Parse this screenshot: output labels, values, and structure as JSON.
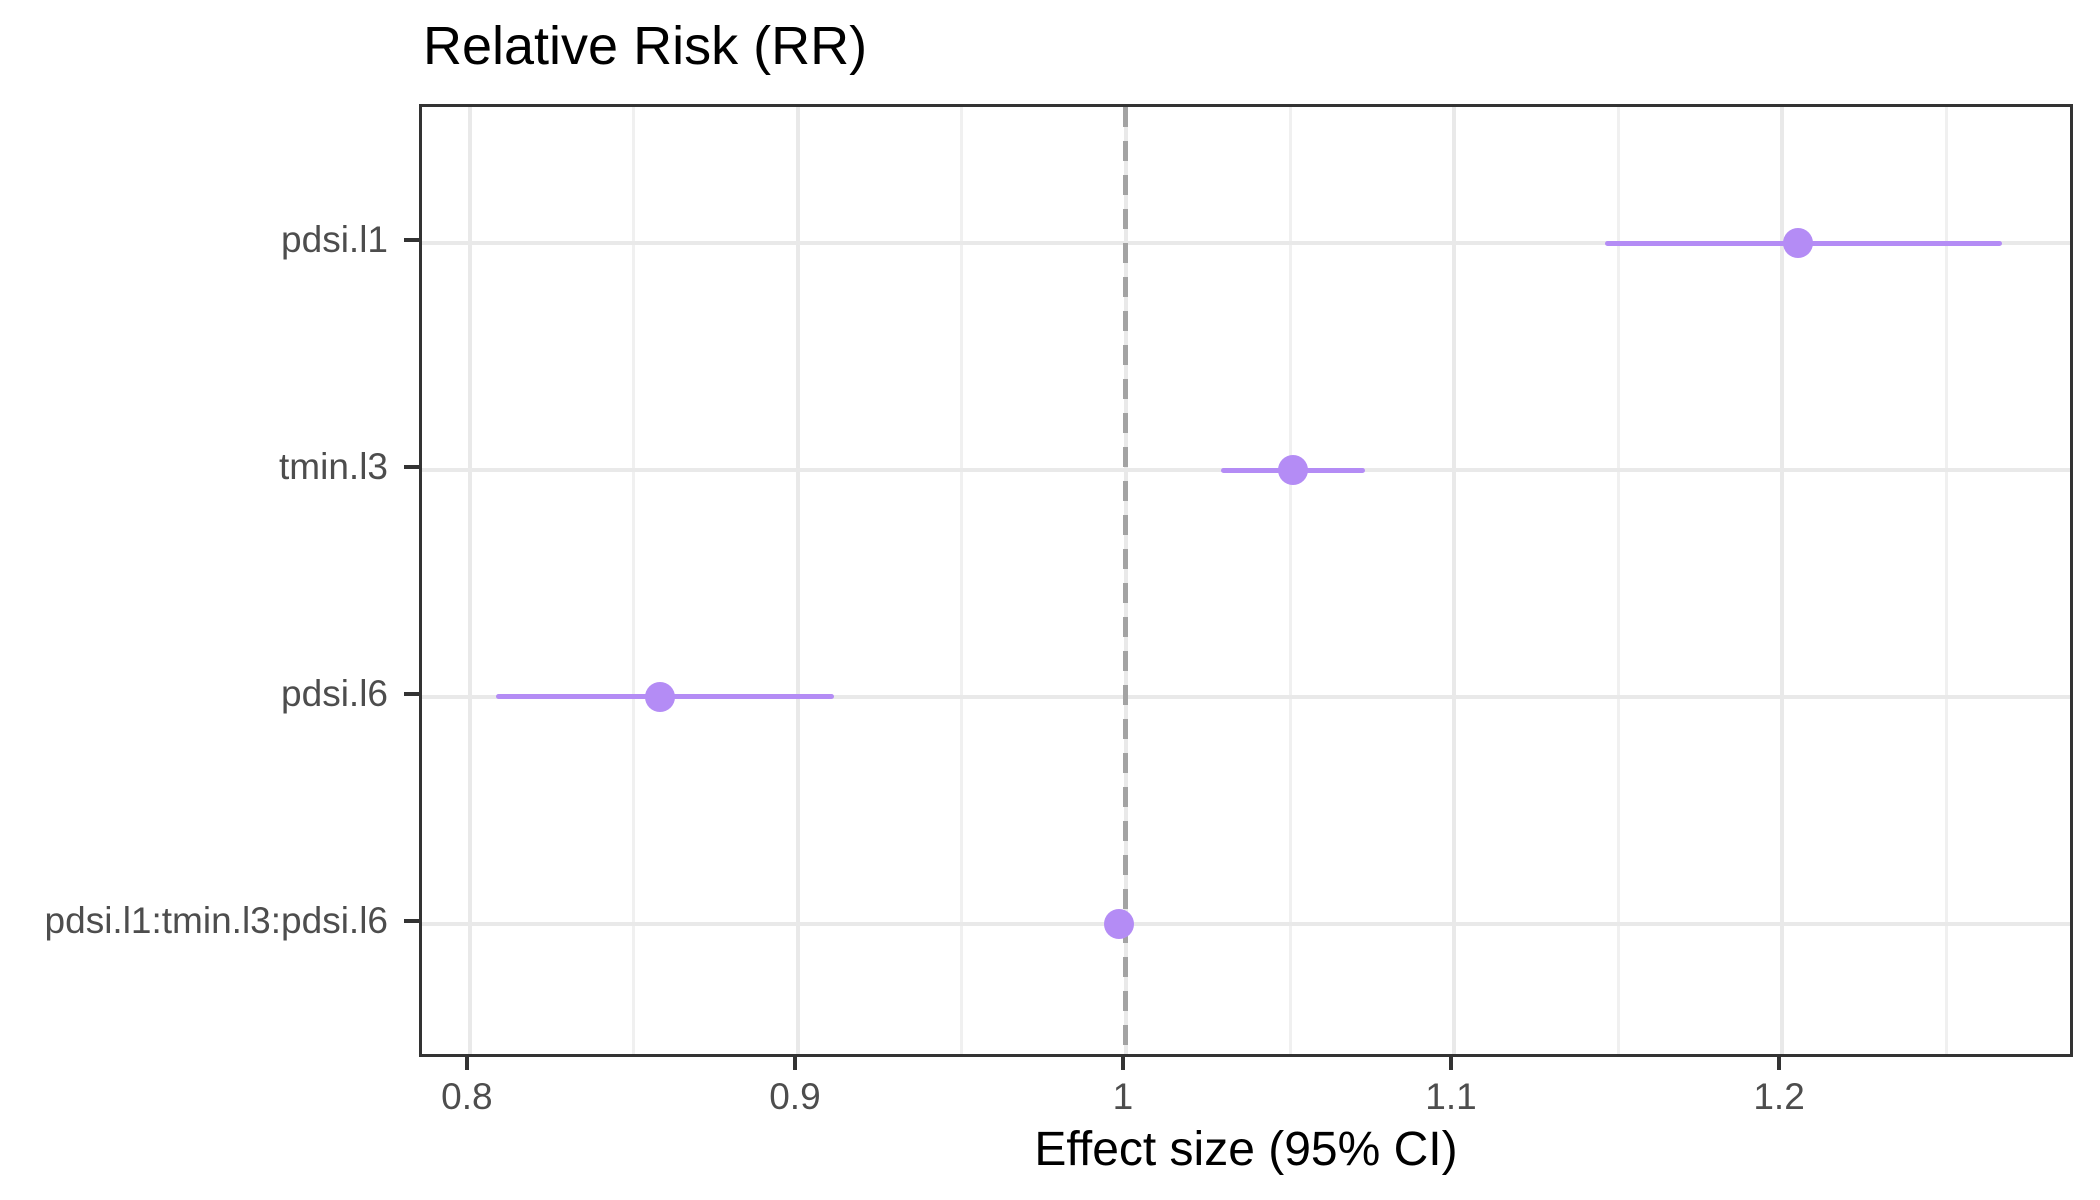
{
  "title": "Relative Risk (RR)",
  "chart_data": {
    "type": "scatter",
    "subtype": "forest-plot-pointrange",
    "title": "Relative Risk (RR)",
    "xlabel": "Effect size (95% CI)",
    "ylabel": "",
    "categories": [
      "pdsi.l1",
      "tmin.l3",
      "pdsi.l6",
      "pdsi.l1:tmin.l3:pdsi.l6"
    ],
    "series": [
      {
        "name": "Relative Risk",
        "points": [
          {
            "label": "pdsi.l1",
            "estimate": 1.205,
            "ci_low": 1.146,
            "ci_high": 1.267
          },
          {
            "label": "tmin.l3",
            "estimate": 1.051,
            "ci_low": 1.029,
            "ci_high": 1.073
          },
          {
            "label": "pdsi.l6",
            "estimate": 0.858,
            "ci_low": 0.808,
            "ci_high": 0.911
          },
          {
            "label": "pdsi.l1:tmin.l3:pdsi.l6",
            "estimate": 0.998,
            "ci_low": 0.994,
            "ci_high": 1.002
          }
        ]
      }
    ],
    "x_ticks": [
      0.8,
      0.9,
      1,
      1.1,
      1.2
    ],
    "x_tick_labels": [
      "0.8",
      "0.9",
      "1",
      "1.1",
      "1.2"
    ],
    "x_minor_ticks": [
      0.85,
      0.95,
      1.05,
      1.15,
      1.25
    ],
    "x_domain": [
      0.7854,
      1.2896
    ],
    "reference_line_x": 1,
    "grid": true,
    "legend": "none"
  },
  "colors": {
    "point": "#b48cf5",
    "ci_line": "#b48cf5",
    "reference_line": "#a3a3a3",
    "grid_major": "#e9e9e9",
    "grid_minor": "#f0f0f0",
    "panel_border": "#333333",
    "panel_bg": "#ffffff",
    "page_bg": "#ffffff",
    "tick_mark": "#333333",
    "axis_text": "#4d4d4d",
    "axis_title_text": "#000000",
    "title_text": "#000000"
  }
}
